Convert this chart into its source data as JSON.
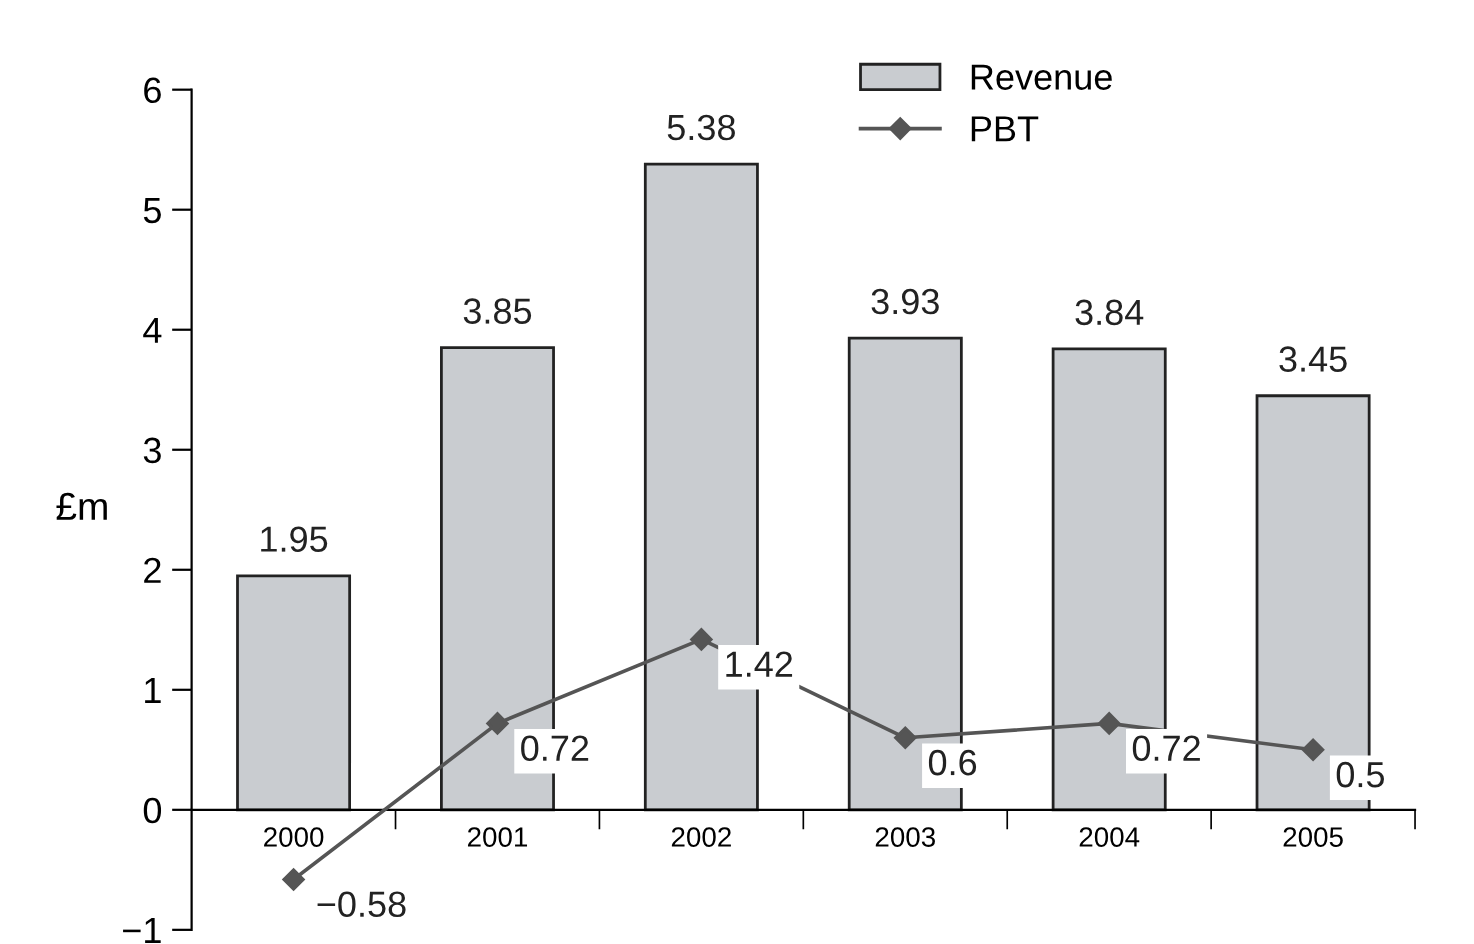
{
  "chart_data": {
    "type": "bar",
    "ylabel": "£m",
    "categories": [
      "2000",
      "2001",
      "2002",
      "2003",
      "2004",
      "2005"
    ],
    "series": [
      {
        "name": "Revenue",
        "color": "#c9ccd0",
        "values": [
          1.95,
          3.85,
          5.38,
          3.93,
          3.84,
          3.45
        ],
        "value_labels": [
          "1.95",
          "3.85",
          "5.38",
          "3.93",
          "3.84",
          "3.45"
        ]
      },
      {
        "name": "PBT",
        "type": "line",
        "color": "#555555",
        "marker": "diamond",
        "values": [
          -0.58,
          0.72,
          1.42,
          0.6,
          0.72,
          0.5
        ],
        "value_labels": [
          "−0.58",
          "0.72",
          "1.42",
          "0.6",
          "0.72",
          "0.5"
        ]
      }
    ],
    "ylim": [
      -1,
      6
    ],
    "yticks": [
      {
        "value": -1,
        "label": "−1"
      },
      0,
      1,
      2,
      3,
      4,
      5,
      6
    ],
    "grid": false,
    "legend": "top right"
  }
}
